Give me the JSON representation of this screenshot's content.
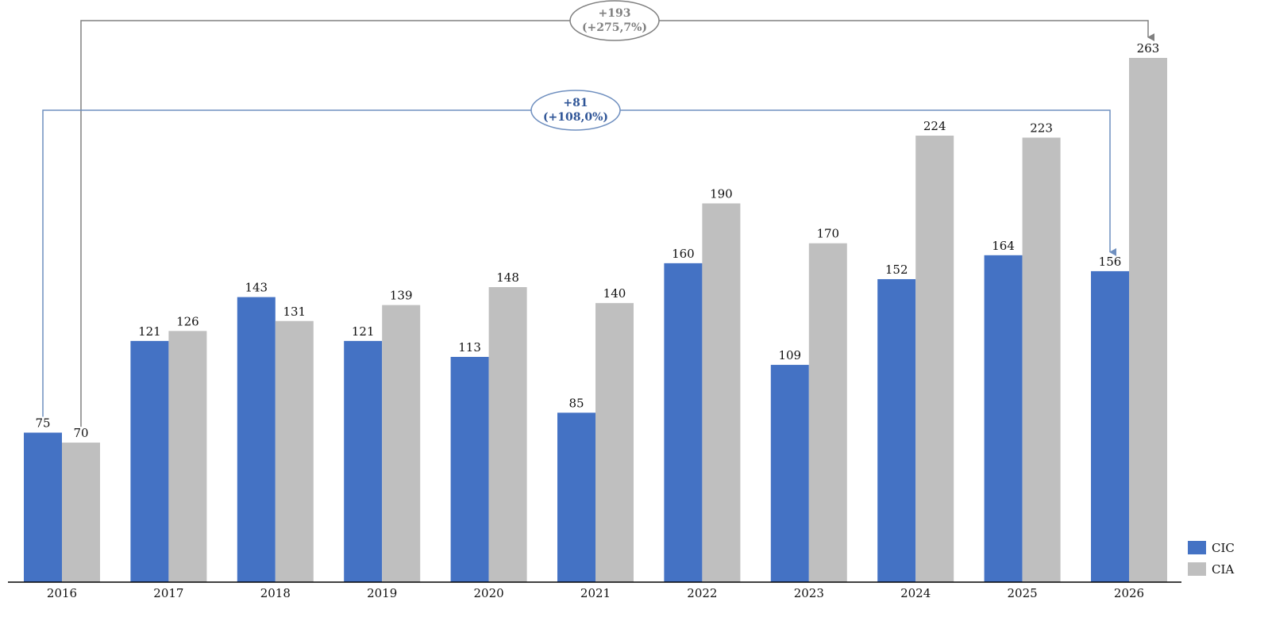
{
  "chart_data": {
    "type": "bar",
    "categories": [
      "2016",
      "2017",
      "2018",
      "2019",
      "2020",
      "2021",
      "2022",
      "2023",
      "2024",
      "2025",
      "2026"
    ],
    "series": [
      {
        "name": "CIC",
        "color": "#4472C4",
        "values": [
          75,
          121,
          143,
          121,
          113,
          85,
          160,
          109,
          152,
          164,
          156
        ]
      },
      {
        "name": "CIA",
        "color": "#BFBFBF",
        "values": [
          70,
          126,
          131,
          139,
          148,
          140,
          190,
          170,
          224,
          223,
          263
        ]
      }
    ],
    "ylim": [
      0,
      263
    ],
    "grid": false,
    "legend": "bottom-right",
    "annotations": [
      {
        "series": "CIA",
        "from": "2016",
        "to": "2026",
        "line1": "+193",
        "line2": "(+275,7%)",
        "color": "#808080"
      },
      {
        "series": "CIC",
        "from": "2016",
        "to": "2026",
        "line1": "+81",
        "line2": "(+108,0%)",
        "color": "#2F5597"
      }
    ]
  }
}
